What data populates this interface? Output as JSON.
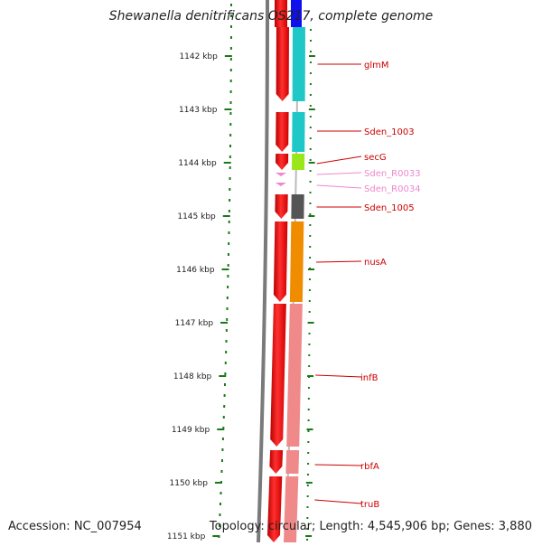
{
  "title": "Shewanella denitrificans OS217, complete genome",
  "accession_text": "Accession: NC_007954",
  "summary_text": "Topology: circular; Length: 4,545,906 bp; Genes: 3,880",
  "ruler": {
    "unit": "kbp",
    "ticks": [
      "1142 kbp",
      "1143 kbp",
      "1144 kbp",
      "1145 kbp",
      "1146 kbp",
      "1147 kbp",
      "1148 kbp",
      "1149 kbp",
      "1150 kbp",
      "1151 kbp"
    ],
    "color": "#1a7a1a"
  },
  "genes": [
    {
      "name": "glmM",
      "color": "#cc0000",
      "band_color": "#1fc7c7",
      "pseudo": false
    },
    {
      "name": "Sden_1003",
      "color": "#cc0000",
      "band_color": "#1fc7c7",
      "pseudo": false
    },
    {
      "name": "secG",
      "color": "#cc0000",
      "band_color": "#99e619",
      "pseudo": false
    },
    {
      "name": "Sden_R0033",
      "color": "#ee88cc",
      "band_color": "",
      "pseudo": true
    },
    {
      "name": "Sden_R0034",
      "color": "#ee88cc",
      "band_color": "",
      "pseudo": true
    },
    {
      "name": "Sden_1005",
      "color": "#cc0000",
      "band_color": "#555555",
      "pseudo": false
    },
    {
      "name": "nusA",
      "color": "#cc0000",
      "band_color": "#f08c00",
      "pseudo": false
    },
    {
      "name": "infB",
      "color": "#cc0000",
      "band_color": "#f08a8a",
      "pseudo": false
    },
    {
      "name": "rbfA",
      "color": "#cc0000",
      "band_color": "#f08a8a",
      "pseudo": false
    },
    {
      "name": "truB",
      "color": "#cc0000",
      "band_color": "#f08a8a",
      "pseudo": false
    }
  ],
  "colors": {
    "strand_red": "#ff0000",
    "strand_gray": "#888888",
    "label_red": "#cc0000",
    "label_pink": "#ee88cc",
    "top_blue": "#1010ee"
  }
}
